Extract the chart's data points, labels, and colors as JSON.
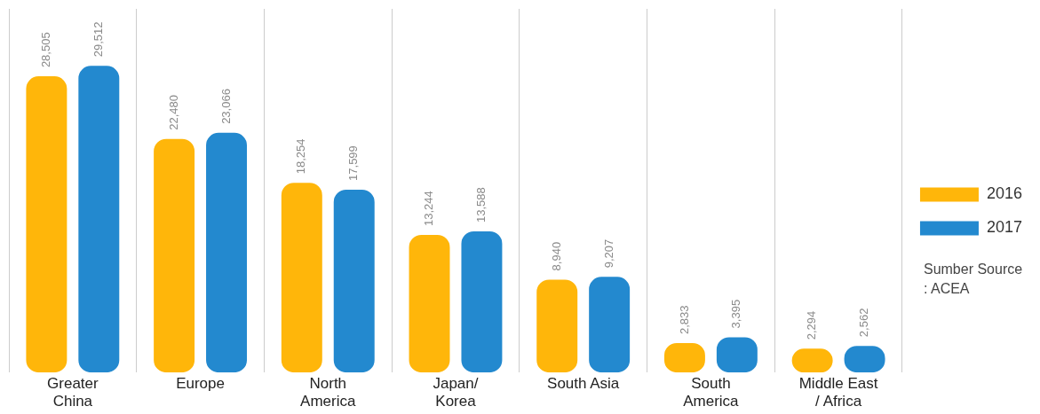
{
  "chart_data": {
    "type": "bar",
    "categories": [
      "Greater China",
      "Europe",
      "North America",
      "Japan/ Korea",
      "South Asia",
      "South America",
      "Middle East / Africa"
    ],
    "series": [
      {
        "name": "2016",
        "color": "#ffb60a",
        "values": [
          28505,
          22480,
          18254,
          13244,
          8940,
          2833,
          2294
        ],
        "value_labels": [
          "28,505",
          "22,480",
          "18,254",
          "13,244",
          "8,940",
          "2,833",
          "2,294"
        ]
      },
      {
        "name": "2017",
        "color": "#2389cf",
        "values": [
          29512,
          23066,
          17599,
          13588,
          9207,
          3395,
          2562
        ],
        "value_labels": [
          "29,512",
          "23,066",
          "17,599",
          "13,588",
          "9,207",
          "3,395",
          "2,562"
        ]
      }
    ],
    "legend": "right",
    "grid": "x",
    "annotations": [
      "Sumber Source : ACEA"
    ]
  }
}
